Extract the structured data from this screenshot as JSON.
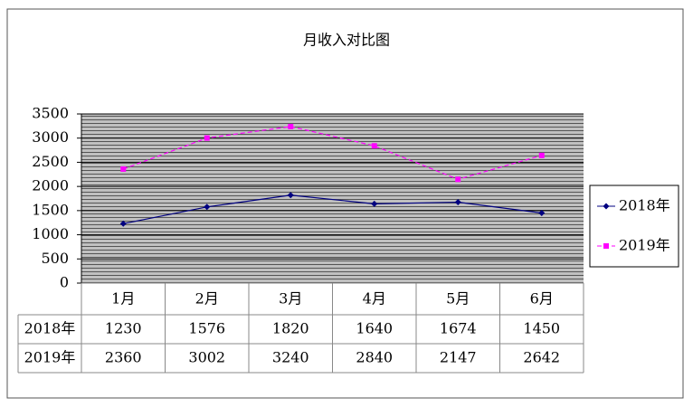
{
  "chart_data": {
    "type": "line",
    "title": "月收入对比图",
    "categories": [
      "1月",
      "2月",
      "3月",
      "4月",
      "5月",
      "6月"
    ],
    "series": [
      {
        "name": "2018年",
        "color": "#000080",
        "values": [
          1230,
          1576,
          1820,
          1640,
          1674,
          1450
        ]
      },
      {
        "name": "2019年",
        "color": "#ff00ff",
        "values": [
          2360,
          3002,
          3240,
          2840,
          2147,
          2642
        ]
      }
    ],
    "ylim": [
      0,
      3500
    ],
    "yticks": [
      0,
      500,
      1000,
      1500,
      2000,
      2500,
      3000,
      3500
    ],
    "grid": true,
    "legend": "right"
  }
}
